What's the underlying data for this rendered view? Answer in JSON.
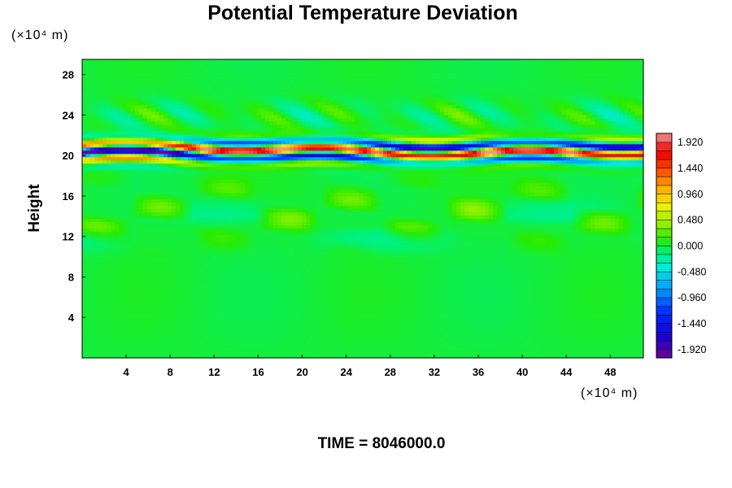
{
  "chart_data": {
    "type": "heatmap",
    "title": "Potential Temperature Deviation",
    "ylabel": "Height",
    "x_unit": "(×10⁴ m)",
    "y_unit": "(×10⁴ m)",
    "x_ticks": [
      "4",
      "8",
      "12",
      "16",
      "20",
      "24",
      "28",
      "32",
      "36",
      "40",
      "44",
      "48"
    ],
    "y_ticks": [
      "4",
      "8",
      "12",
      "16",
      "20",
      "24",
      "28"
    ],
    "x_tick_values": [
      4,
      8,
      12,
      16,
      20,
      24,
      28,
      32,
      36,
      40,
      44,
      48
    ],
    "y_tick_values": [
      4,
      8,
      12,
      16,
      20,
      24,
      28
    ],
    "xlim": [
      0,
      51
    ],
    "ylim": [
      0,
      29.5
    ],
    "colorbar": {
      "labels": [
        "1.920",
        "1.440",
        "0.960",
        "0.480",
        "0.000",
        "-0.480",
        "-0.960",
        "-1.440",
        "-1.920"
      ],
      "label_values": [
        1.92,
        1.44,
        0.96,
        0.48,
        0.0,
        -0.48,
        -0.96,
        -1.44,
        -1.92
      ],
      "range": [
        -2.08,
        2.08
      ],
      "levels": 26
    },
    "field_description": {
      "background_value": 0.0,
      "features": [
        {
          "type": "layer",
          "y_center": 20.5,
          "thickness": 2.5,
          "amplitude": 2.0,
          "note": "strong alternating positive/negative band"
        },
        {
          "type": "layer",
          "y_center": 24.5,
          "thickness": 2.5,
          "amplitude": 0.4,
          "note": "weak wavy structure above the main band"
        },
        {
          "type": "patches",
          "y_range": [
            10.5,
            18.5
          ],
          "amplitude": 0.45,
          "note": "scattered yellow positive patches"
        }
      ]
    },
    "footer": "TIME = 8046000.0"
  }
}
